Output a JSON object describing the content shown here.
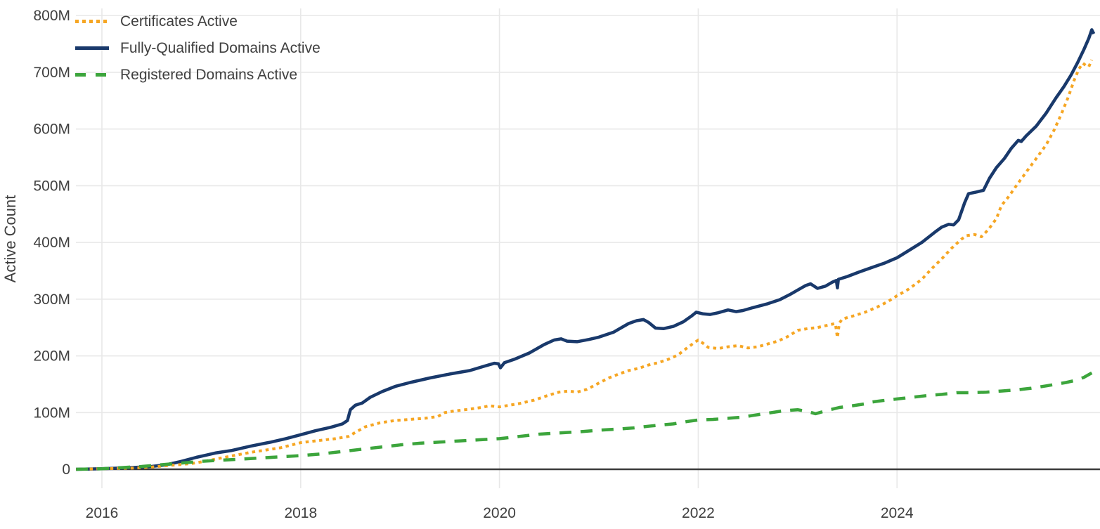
{
  "chart_data": {
    "type": "line",
    "title": "",
    "xlabel": "",
    "ylabel": "Active Count",
    "unit": "millions",
    "grid": true,
    "legend_position": "top-left",
    "xlim": [
      2015.74,
      2026.02
    ],
    "ylim": [
      0,
      800
    ],
    "x_ticks": [
      {
        "value": 2016,
        "label": "2016"
      },
      {
        "value": 2018,
        "label": "2018"
      },
      {
        "value": 2020,
        "label": "2020"
      },
      {
        "value": 2022,
        "label": "2022"
      },
      {
        "value": 2024,
        "label": "2024"
      }
    ],
    "y_ticks": [
      {
        "value": 0,
        "label": "0"
      },
      {
        "value": 100,
        "label": "100M"
      },
      {
        "value": 200,
        "label": "200M"
      },
      {
        "value": 300,
        "label": "300M"
      },
      {
        "value": 400,
        "label": "400M"
      },
      {
        "value": 500,
        "label": "500M"
      },
      {
        "value": 600,
        "label": "600M"
      },
      {
        "value": 700,
        "label": "700M"
      },
      {
        "value": 800,
        "label": "800M"
      }
    ],
    "series": [
      {
        "name": "Fully-Qualified Domains Active",
        "color": "#19396B",
        "style": "solid",
        "points": [
          [
            2015.74,
            0
          ],
          [
            2016.0,
            1
          ],
          [
            2016.3,
            3
          ],
          [
            2016.5,
            5
          ],
          [
            2016.65,
            8
          ],
          [
            2016.8,
            14
          ],
          [
            2016.95,
            21
          ],
          [
            2017.05,
            25
          ],
          [
            2017.15,
            29
          ],
          [
            2017.3,
            33
          ],
          [
            2017.5,
            41
          ],
          [
            2017.7,
            48
          ],
          [
            2017.85,
            54
          ],
          [
            2018.0,
            61
          ],
          [
            2018.15,
            68
          ],
          [
            2018.3,
            74
          ],
          [
            2018.42,
            80
          ],
          [
            2018.47,
            86
          ],
          [
            2018.5,
            105
          ],
          [
            2018.55,
            113
          ],
          [
            2018.62,
            117
          ],
          [
            2018.7,
            127
          ],
          [
            2018.82,
            137
          ],
          [
            2018.95,
            146
          ],
          [
            2019.1,
            153
          ],
          [
            2019.3,
            161
          ],
          [
            2019.5,
            168
          ],
          [
            2019.7,
            174
          ],
          [
            2019.85,
            182
          ],
          [
            2019.95,
            187
          ],
          [
            2019.99,
            186
          ],
          [
            2020.01,
            179
          ],
          [
            2020.05,
            188
          ],
          [
            2020.15,
            194
          ],
          [
            2020.3,
            205
          ],
          [
            2020.45,
            220
          ],
          [
            2020.55,
            228
          ],
          [
            2020.62,
            230
          ],
          [
            2020.68,
            226
          ],
          [
            2020.78,
            225
          ],
          [
            2020.9,
            229
          ],
          [
            2021.0,
            233
          ],
          [
            2021.15,
            242
          ],
          [
            2021.3,
            257
          ],
          [
            2021.38,
            262
          ],
          [
            2021.45,
            264
          ],
          [
            2021.5,
            259
          ],
          [
            2021.57,
            249
          ],
          [
            2021.65,
            248
          ],
          [
            2021.75,
            252
          ],
          [
            2021.85,
            260
          ],
          [
            2021.93,
            270
          ],
          [
            2021.98,
            277
          ],
          [
            2022.05,
            274
          ],
          [
            2022.12,
            273
          ],
          [
            2022.2,
            276
          ],
          [
            2022.3,
            281
          ],
          [
            2022.38,
            278
          ],
          [
            2022.45,
            280
          ],
          [
            2022.55,
            285
          ],
          [
            2022.7,
            292
          ],
          [
            2022.82,
            299
          ],
          [
            2022.92,
            308
          ],
          [
            2023.0,
            316
          ],
          [
            2023.08,
            324
          ],
          [
            2023.13,
            327
          ],
          [
            2023.2,
            319
          ],
          [
            2023.28,
            323
          ],
          [
            2023.35,
            330
          ],
          [
            2023.39,
            333
          ],
          [
            2023.4,
            320
          ],
          [
            2023.41,
            335
          ],
          [
            2023.5,
            340
          ],
          [
            2023.62,
            348
          ],
          [
            2023.75,
            356
          ],
          [
            2023.88,
            364
          ],
          [
            2024.0,
            373
          ],
          [
            2024.12,
            386
          ],
          [
            2024.25,
            400
          ],
          [
            2024.38,
            418
          ],
          [
            2024.45,
            427
          ],
          [
            2024.52,
            432
          ],
          [
            2024.57,
            431
          ],
          [
            2024.62,
            440
          ],
          [
            2024.68,
            470
          ],
          [
            2024.72,
            486
          ],
          [
            2024.8,
            489
          ],
          [
            2024.87,
            492
          ],
          [
            2024.93,
            513
          ],
          [
            2025.0,
            532
          ],
          [
            2025.08,
            548
          ],
          [
            2025.15,
            566
          ],
          [
            2025.22,
            580
          ],
          [
            2025.25,
            578
          ],
          [
            2025.3,
            588
          ],
          [
            2025.4,
            605
          ],
          [
            2025.5,
            628
          ],
          [
            2025.6,
            655
          ],
          [
            2025.68,
            675
          ],
          [
            2025.75,
            695
          ],
          [
            2025.82,
            718
          ],
          [
            2025.88,
            740
          ],
          [
            2025.93,
            760
          ],
          [
            2025.96,
            775
          ],
          [
            2025.98,
            768
          ]
        ]
      },
      {
        "name": "Certificates Active",
        "color": "#F6A623",
        "style": "dotted",
        "points": [
          [
            2015.74,
            0
          ],
          [
            2016.0,
            1
          ],
          [
            2016.3,
            2
          ],
          [
            2016.5,
            4
          ],
          [
            2016.7,
            7
          ],
          [
            2016.9,
            10
          ],
          [
            2017.0,
            13
          ],
          [
            2017.2,
            20
          ],
          [
            2017.35,
            25
          ],
          [
            2017.5,
            30
          ],
          [
            2017.65,
            34
          ],
          [
            2017.8,
            38
          ],
          [
            2018.0,
            47
          ],
          [
            2018.2,
            51
          ],
          [
            2018.35,
            54
          ],
          [
            2018.48,
            58
          ],
          [
            2018.55,
            65
          ],
          [
            2018.65,
            75
          ],
          [
            2018.8,
            82
          ],
          [
            2018.95,
            86
          ],
          [
            2019.1,
            88
          ],
          [
            2019.25,
            90
          ],
          [
            2019.38,
            93
          ],
          [
            2019.45,
            100
          ],
          [
            2019.55,
            103
          ],
          [
            2019.7,
            106
          ],
          [
            2019.82,
            109
          ],
          [
            2019.9,
            112
          ],
          [
            2020.0,
            110
          ],
          [
            2020.1,
            113
          ],
          [
            2020.2,
            116
          ],
          [
            2020.35,
            122
          ],
          [
            2020.5,
            131
          ],
          [
            2020.6,
            136
          ],
          [
            2020.7,
            138
          ],
          [
            2020.78,
            136
          ],
          [
            2020.88,
            141
          ],
          [
            2021.0,
            152
          ],
          [
            2021.1,
            161
          ],
          [
            2021.2,
            168
          ],
          [
            2021.3,
            174
          ],
          [
            2021.4,
            178
          ],
          [
            2021.5,
            184
          ],
          [
            2021.6,
            188
          ],
          [
            2021.7,
            194
          ],
          [
            2021.8,
            202
          ],
          [
            2021.88,
            213
          ],
          [
            2021.95,
            222
          ],
          [
            2022.0,
            228
          ],
          [
            2022.05,
            222
          ],
          [
            2022.1,
            215
          ],
          [
            2022.2,
            213
          ],
          [
            2022.3,
            216
          ],
          [
            2022.4,
            218
          ],
          [
            2022.5,
            214
          ],
          [
            2022.6,
            216
          ],
          [
            2022.7,
            221
          ],
          [
            2022.8,
            226
          ],
          [
            2022.9,
            234
          ],
          [
            2023.0,
            245
          ],
          [
            2023.1,
            248
          ],
          [
            2023.2,
            250
          ],
          [
            2023.3,
            254
          ],
          [
            2023.38,
            257
          ],
          [
            2023.4,
            232
          ],
          [
            2023.42,
            258
          ],
          [
            2023.45,
            265
          ],
          [
            2023.55,
            270
          ],
          [
            2023.68,
            277
          ],
          [
            2023.8,
            286
          ],
          [
            2023.9,
            295
          ],
          [
            2024.0,
            306
          ],
          [
            2024.12,
            318
          ],
          [
            2024.25,
            335
          ],
          [
            2024.35,
            354
          ],
          [
            2024.45,
            371
          ],
          [
            2024.55,
            390
          ],
          [
            2024.65,
            406
          ],
          [
            2024.7,
            412
          ],
          [
            2024.78,
            414
          ],
          [
            2024.85,
            410
          ],
          [
            2024.92,
            423
          ],
          [
            2025.0,
            442
          ],
          [
            2025.05,
            465
          ],
          [
            2025.12,
            480
          ],
          [
            2025.2,
            500
          ],
          [
            2025.3,
            524
          ],
          [
            2025.4,
            548
          ],
          [
            2025.5,
            572
          ],
          [
            2025.58,
            598
          ],
          [
            2025.65,
            625
          ],
          [
            2025.72,
            655
          ],
          [
            2025.78,
            685
          ],
          [
            2025.83,
            706
          ],
          [
            2025.87,
            716
          ],
          [
            2025.9,
            712
          ],
          [
            2025.93,
            710
          ],
          [
            2025.96,
            722
          ]
        ]
      },
      {
        "name": "Registered Domains Active",
        "color": "#3CA53C",
        "style": "dashed",
        "points": [
          [
            2015.74,
            0
          ],
          [
            2016.0,
            1
          ],
          [
            2016.2,
            3
          ],
          [
            2016.4,
            5
          ],
          [
            2016.6,
            8
          ],
          [
            2016.8,
            11
          ],
          [
            2017.0,
            14
          ],
          [
            2017.2,
            16
          ],
          [
            2017.4,
            18
          ],
          [
            2017.6,
            20
          ],
          [
            2017.8,
            22
          ],
          [
            2018.0,
            24
          ],
          [
            2018.2,
            27
          ],
          [
            2018.4,
            31
          ],
          [
            2018.6,
            35
          ],
          [
            2018.8,
            39
          ],
          [
            2019.0,
            43
          ],
          [
            2019.2,
            46
          ],
          [
            2019.4,
            48
          ],
          [
            2019.6,
            50
          ],
          [
            2019.8,
            52
          ],
          [
            2020.0,
            54
          ],
          [
            2020.2,
            58
          ],
          [
            2020.4,
            62
          ],
          [
            2020.6,
            64
          ],
          [
            2020.8,
            66
          ],
          [
            2021.0,
            69
          ],
          [
            2021.2,
            71
          ],
          [
            2021.35,
            73
          ],
          [
            2021.5,
            76
          ],
          [
            2021.62,
            78
          ],
          [
            2021.75,
            80
          ],
          [
            2021.88,
            84
          ],
          [
            2022.0,
            87
          ],
          [
            2022.15,
            88
          ],
          [
            2022.3,
            90
          ],
          [
            2022.45,
            92
          ],
          [
            2022.55,
            95
          ],
          [
            2022.7,
            99
          ],
          [
            2022.85,
            103
          ],
          [
            2023.0,
            105
          ],
          [
            2023.1,
            102
          ],
          [
            2023.18,
            98
          ],
          [
            2023.3,
            104
          ],
          [
            2023.42,
            109
          ],
          [
            2023.55,
            112
          ],
          [
            2023.7,
            116
          ],
          [
            2023.72,
            118
          ],
          [
            2023.85,
            121
          ],
          [
            2024.0,
            124
          ],
          [
            2024.15,
            127
          ],
          [
            2024.3,
            130
          ],
          [
            2024.45,
            132
          ],
          [
            2024.6,
            135
          ],
          [
            2024.75,
            135
          ],
          [
            2024.9,
            136
          ],
          [
            2025.05,
            138
          ],
          [
            2025.2,
            140
          ],
          [
            2025.35,
            143
          ],
          [
            2025.5,
            147
          ],
          [
            2025.6,
            150
          ],
          [
            2025.7,
            153
          ],
          [
            2025.8,
            157
          ],
          [
            2025.88,
            162
          ],
          [
            2025.96,
            170
          ]
        ]
      }
    ],
    "legend_order": [
      1,
      0,
      2
    ]
  },
  "colors": {
    "background": "#ffffff",
    "gridline": "#e8e8e8",
    "axis_line": "#3b3b3b",
    "tick_text": "#3f3f3f"
  }
}
